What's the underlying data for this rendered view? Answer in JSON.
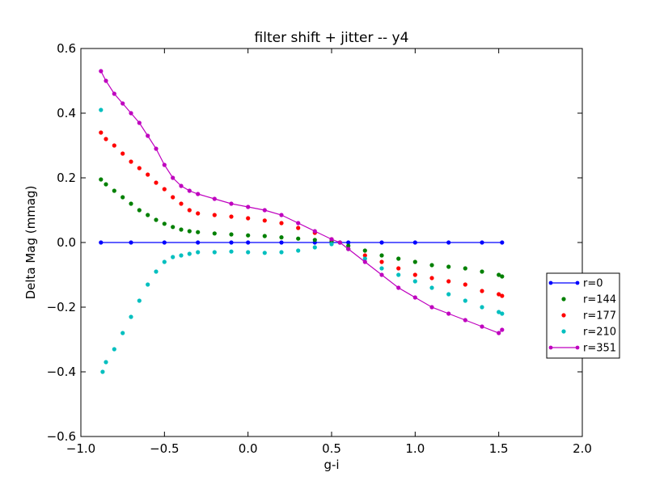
{
  "chart_data": {
    "type": "scatter",
    "title": "filter shift + jitter -- y4",
    "xlabel": "g-i",
    "ylabel": "Delta Mag (mmag)",
    "xlim": [
      -1.0,
      2.0
    ],
    "ylim": [
      -0.6,
      0.6
    ],
    "xticks": [
      -1.0,
      -0.5,
      0.0,
      0.5,
      1.0,
      1.5,
      2.0
    ],
    "xtick_labels": [
      "−1.0",
      "−0.5",
      "0.0",
      "0.5",
      "1.0",
      "1.5",
      "2.0"
    ],
    "yticks": [
      -0.6,
      -0.4,
      -0.2,
      0.0,
      0.2,
      0.4,
      0.6
    ],
    "ytick_labels": [
      "−0.6",
      "−0.4",
      "−0.2",
      "0.0",
      "0.2",
      "0.4",
      "0.6"
    ],
    "grid": false,
    "legend_position": "right, outside plot area",
    "series": [
      {
        "name": "r=0",
        "color": "#0000ff",
        "style": "line-markers",
        "x": [
          -0.88,
          -0.7,
          -0.5,
          -0.3,
          -0.1,
          0.0,
          0.2,
          0.4,
          0.6,
          0.8,
          1.0,
          1.2,
          1.4,
          1.52
        ],
        "y": [
          0.0,
          0.0,
          0.0,
          0.0,
          0.0,
          0.0,
          0.0,
          0.0,
          0.0,
          0.0,
          0.0,
          0.0,
          0.0,
          0.0
        ]
      },
      {
        "name": "r=144",
        "color": "#008000",
        "style": "markers",
        "x": [
          -0.88,
          -0.85,
          -0.8,
          -0.75,
          -0.7,
          -0.65,
          -0.6,
          -0.55,
          -0.5,
          -0.45,
          -0.4,
          -0.35,
          -0.3,
          -0.2,
          -0.1,
          0.0,
          0.1,
          0.2,
          0.3,
          0.4,
          0.5,
          0.55,
          0.6,
          0.7,
          0.8,
          0.9,
          1.0,
          1.1,
          1.2,
          1.3,
          1.4,
          1.5,
          1.52
        ],
        "y": [
          0.195,
          0.18,
          0.16,
          0.14,
          0.12,
          0.1,
          0.085,
          0.07,
          0.058,
          0.048,
          0.04,
          0.035,
          0.032,
          0.028,
          0.025,
          0.022,
          0.02,
          0.016,
          0.012,
          0.008,
          0.004,
          0.0,
          -0.01,
          -0.025,
          -0.04,
          -0.05,
          -0.06,
          -0.07,
          -0.075,
          -0.08,
          -0.09,
          -0.1,
          -0.105
        ]
      },
      {
        "name": "r=177",
        "color": "#ff0000",
        "style": "markers",
        "x": [
          -0.88,
          -0.85,
          -0.8,
          -0.75,
          -0.7,
          -0.65,
          -0.6,
          -0.55,
          -0.5,
          -0.45,
          -0.4,
          -0.35,
          -0.3,
          -0.2,
          -0.1,
          0.0,
          0.1,
          0.2,
          0.3,
          0.4,
          0.5,
          0.55,
          0.6,
          0.7,
          0.8,
          0.9,
          1.0,
          1.1,
          1.2,
          1.3,
          1.4,
          1.5,
          1.52
        ],
        "y": [
          0.34,
          0.32,
          0.3,
          0.275,
          0.25,
          0.23,
          0.21,
          0.185,
          0.165,
          0.14,
          0.12,
          0.1,
          0.09,
          0.085,
          0.08,
          0.075,
          0.068,
          0.06,
          0.045,
          0.03,
          0.01,
          0.0,
          -0.02,
          -0.04,
          -0.06,
          -0.08,
          -0.1,
          -0.11,
          -0.12,
          -0.13,
          -0.15,
          -0.16,
          -0.165
        ]
      },
      {
        "name": "r=210",
        "color": "#00bfbf",
        "style": "markers",
        "x": [
          -0.88,
          -0.87,
          -0.85,
          -0.8,
          -0.75,
          -0.7,
          -0.65,
          -0.6,
          -0.55,
          -0.5,
          -0.45,
          -0.4,
          -0.35,
          -0.3,
          -0.2,
          -0.1,
          0.0,
          0.1,
          0.2,
          0.3,
          0.4,
          0.5,
          0.55,
          0.6,
          0.7,
          0.8,
          0.9,
          1.0,
          1.1,
          1.2,
          1.3,
          1.4,
          1.5,
          1.52
        ],
        "y": [
          0.41,
          -0.4,
          -0.37,
          -0.33,
          -0.28,
          -0.23,
          -0.18,
          -0.13,
          -0.09,
          -0.06,
          -0.045,
          -0.04,
          -0.035,
          -0.03,
          -0.03,
          -0.028,
          -0.03,
          -0.032,
          -0.03,
          -0.025,
          -0.015,
          -0.005,
          0.0,
          -0.02,
          -0.05,
          -0.08,
          -0.1,
          -0.12,
          -0.14,
          -0.16,
          -0.18,
          -0.2,
          -0.215,
          -0.22
        ]
      },
      {
        "name": "r=351",
        "color": "#bf00bf",
        "style": "line-markers",
        "x": [
          -0.88,
          -0.85,
          -0.8,
          -0.75,
          -0.7,
          -0.65,
          -0.6,
          -0.55,
          -0.5,
          -0.45,
          -0.4,
          -0.35,
          -0.3,
          -0.2,
          -0.1,
          0.0,
          0.1,
          0.2,
          0.3,
          0.4,
          0.5,
          0.55,
          0.6,
          0.7,
          0.8,
          0.9,
          1.0,
          1.1,
          1.2,
          1.3,
          1.4,
          1.5,
          1.52
        ],
        "y": [
          0.53,
          0.5,
          0.46,
          0.43,
          0.4,
          0.37,
          0.33,
          0.29,
          0.24,
          0.2,
          0.175,
          0.16,
          0.15,
          0.135,
          0.12,
          0.11,
          0.1,
          0.085,
          0.06,
          0.035,
          0.01,
          0.0,
          -0.02,
          -0.06,
          -0.1,
          -0.14,
          -0.17,
          -0.2,
          -0.22,
          -0.24,
          -0.26,
          -0.28,
          -0.27
        ]
      }
    ]
  }
}
